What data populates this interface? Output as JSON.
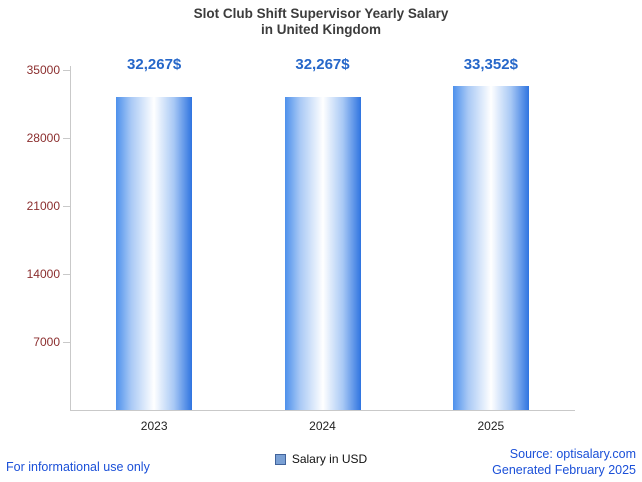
{
  "title": {
    "line1": "Slot Club Shift Supervisor Yearly Salary",
    "line2": "in United Kingdom"
  },
  "chart_data": {
    "type": "bar",
    "categories": [
      "2023",
      "2024",
      "2025"
    ],
    "values": [
      32267,
      32267,
      33352
    ],
    "value_labels": [
      "32,267$",
      "32,267$",
      "33,352$"
    ],
    "title": "Slot Club Shift Supervisor Yearly Salary in United Kingdom",
    "xlabel": "",
    "ylabel": "",
    "ylim": [
      0,
      35000
    ],
    "yticks": [
      7000,
      14000,
      21000,
      28000,
      35000
    ],
    "grid": false,
    "legend_position": "bottom",
    "legend": [
      {
        "label": "Salary in USD",
        "color": "#7aa0d4"
      }
    ]
  },
  "colors": {
    "value_label": "#2667c9",
    "ytick_label": "#8b2e2e",
    "xtick_label": "#222222",
    "axis": "#c9c9c9",
    "bar_edge_left": "#4d90ec",
    "bar_center": "#ffffff",
    "bar_edge_right": "#2f74e0",
    "footer_blue": "#1b50d8",
    "title_gray": "#3c3c3c"
  },
  "footer": {
    "left": "For informational use only",
    "source": "Source: optisalary.com",
    "generated": "Generated February 2025"
  }
}
